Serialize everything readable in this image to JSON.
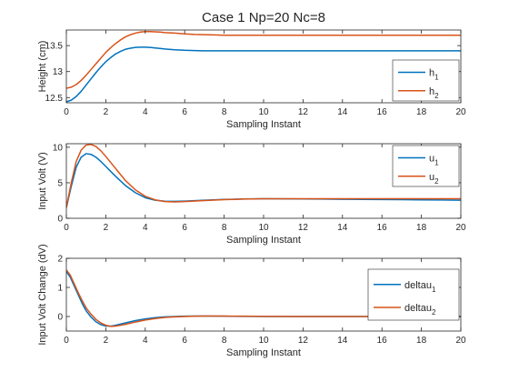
{
  "figure_title": "Case 1 Np=20 Nc=8",
  "colors": {
    "series1": "#0072BD",
    "series2": "#D95319",
    "axis": "#262626"
  },
  "chart_data": [
    {
      "type": "line",
      "title": "Case 1 Np=20 Nc=8",
      "xlabel": "Sampling Instant",
      "ylabel": "Height (cm)",
      "xlim": [
        0,
        20
      ],
      "ylim": [
        12.4,
        13.8
      ],
      "xticks": [
        "0",
        "2",
        "4",
        "6",
        "8",
        "10",
        "12",
        "14",
        "16",
        "18",
        "20"
      ],
      "yticks": [
        "12.5",
        "13",
        "13.5"
      ],
      "ytick_values": [
        12.5,
        13,
        13.5
      ],
      "legend_position": "right",
      "x": [
        0,
        0.25,
        0.5,
        0.75,
        1,
        1.25,
        1.5,
        1.75,
        2,
        2.25,
        2.5,
        2.75,
        3,
        3.25,
        3.5,
        3.75,
        4,
        4.25,
        4.5,
        4.75,
        5,
        5.5,
        6,
        6.5,
        7,
        7.5,
        8,
        9,
        10,
        11,
        12,
        13,
        14,
        15,
        16,
        17,
        18,
        19,
        20
      ],
      "series": [
        {
          "name": "h",
          "sub": "1",
          "color": "#0072BD",
          "values": [
            12.42,
            12.45,
            12.52,
            12.62,
            12.74,
            12.86,
            12.98,
            13.09,
            13.19,
            13.27,
            13.34,
            13.39,
            13.43,
            13.45,
            13.465,
            13.47,
            13.47,
            13.465,
            13.455,
            13.445,
            13.435,
            13.42,
            13.41,
            13.405,
            13.4,
            13.4,
            13.4,
            13.4,
            13.4,
            13.4,
            13.4,
            13.4,
            13.4,
            13.4,
            13.4,
            13.4,
            13.4,
            13.4,
            13.4
          ]
        },
        {
          "name": "h",
          "sub": "2",
          "color": "#D95319",
          "values": [
            12.68,
            12.7,
            12.75,
            12.83,
            12.93,
            13.04,
            13.15,
            13.26,
            13.37,
            13.46,
            13.54,
            13.61,
            13.67,
            13.71,
            13.74,
            13.76,
            13.77,
            13.77,
            13.765,
            13.76,
            13.75,
            13.74,
            13.725,
            13.715,
            13.71,
            13.705,
            13.7,
            13.7,
            13.7,
            13.7,
            13.7,
            13.7,
            13.7,
            13.7,
            13.7,
            13.7,
            13.7,
            13.7,
            13.7
          ]
        }
      ]
    },
    {
      "type": "line",
      "title": "",
      "xlabel": "Sampling Instant",
      "ylabel": "Input Volt (V)",
      "xlim": [
        0,
        20
      ],
      "ylim": [
        0,
        10.5
      ],
      "xticks": [
        "0",
        "2",
        "4",
        "6",
        "8",
        "10",
        "12",
        "14",
        "16",
        "18",
        "20"
      ],
      "yticks": [
        "0",
        "5",
        "10"
      ],
      "ytick_values": [
        0,
        5,
        10
      ],
      "legend_position": "top-right",
      "x": [
        0,
        0.25,
        0.5,
        0.75,
        1,
        1.25,
        1.5,
        1.75,
        2,
        2.5,
        3,
        3.5,
        4,
        4.5,
        5,
        5.5,
        6,
        7,
        8,
        9,
        10,
        11,
        12,
        13,
        14,
        15,
        16,
        17,
        18,
        19,
        20
      ],
      "series": [
        {
          "name": "u",
          "sub": "1",
          "color": "#0072BD",
          "values": [
            1.5,
            4.5,
            7.2,
            8.6,
            9.1,
            9.0,
            8.6,
            8.0,
            7.3,
            5.9,
            4.6,
            3.6,
            2.9,
            2.55,
            2.4,
            2.38,
            2.42,
            2.55,
            2.65,
            2.72,
            2.75,
            2.74,
            2.72,
            2.7,
            2.68,
            2.66,
            2.64,
            2.62,
            2.6,
            2.58,
            2.55
          ]
        },
        {
          "name": "u",
          "sub": "2",
          "color": "#D95319",
          "values": [
            1.5,
            5.0,
            8.0,
            9.6,
            10.3,
            10.4,
            10.1,
            9.5,
            8.7,
            7.0,
            5.3,
            4.0,
            3.1,
            2.6,
            2.35,
            2.3,
            2.35,
            2.5,
            2.62,
            2.7,
            2.75,
            2.76,
            2.76,
            2.76,
            2.76,
            2.76,
            2.76,
            2.76,
            2.76,
            2.76,
            2.76
          ]
        }
      ]
    },
    {
      "type": "line",
      "title": "",
      "xlabel": "Sampling Instant",
      "ylabel": "Input Volt Change (dV)",
      "xlim": [
        0,
        20
      ],
      "ylim": [
        -0.5,
        2
      ],
      "xticks": [
        "0",
        "2",
        "4",
        "6",
        "8",
        "10",
        "12",
        "14",
        "16",
        "18",
        "20"
      ],
      "yticks": [
        "0",
        "1",
        "2"
      ],
      "ytick_values": [
        0,
        1,
        2
      ],
      "legend_position": "top-right",
      "x": [
        0,
        0.2,
        0.4,
        0.6,
        0.8,
        1,
        1.25,
        1.5,
        1.75,
        2,
        2.25,
        2.5,
        3,
        3.5,
        4,
        4.5,
        5,
        5.5,
        6,
        6.5,
        7,
        8,
        9,
        10,
        12,
        14,
        16,
        18,
        20
      ],
      "series": [
        {
          "name": "deltau",
          "sub": "1",
          "color": "#0072BD",
          "values": [
            1.55,
            1.35,
            1.05,
            0.75,
            0.45,
            0.2,
            -0.02,
            -0.18,
            -0.28,
            -0.33,
            -0.33,
            -0.3,
            -0.22,
            -0.14,
            -0.08,
            -0.04,
            -0.01,
            0.0,
            0.01,
            0.015,
            0.015,
            0.01,
            0.005,
            0.0,
            0.0,
            0.0,
            0.0,
            0.0,
            0.0
          ]
        },
        {
          "name": "deltau",
          "sub": "2",
          "color": "#D95319",
          "values": [
            1.6,
            1.42,
            1.12,
            0.82,
            0.55,
            0.3,
            0.08,
            -0.1,
            -0.22,
            -0.3,
            -0.34,
            -0.33,
            -0.27,
            -0.19,
            -0.12,
            -0.07,
            -0.03,
            -0.01,
            0.0,
            0.01,
            0.015,
            0.015,
            0.01,
            0.005,
            0.0,
            0.0,
            0.0,
            0.0,
            0.0
          ]
        }
      ]
    }
  ]
}
